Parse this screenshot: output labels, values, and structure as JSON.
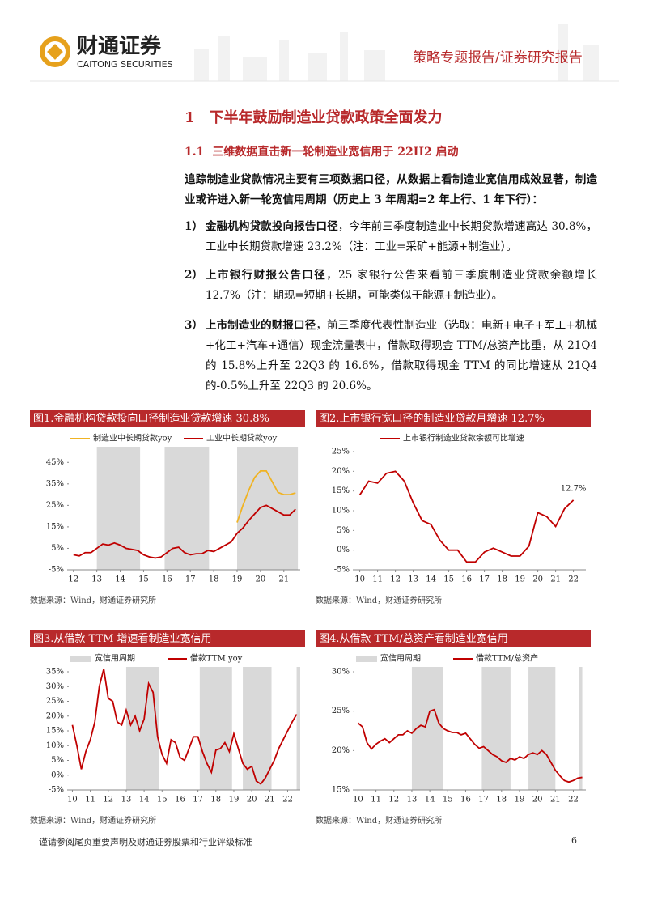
{
  "header": {
    "logo_cn": "财通证券",
    "logo_en": "CAITONG SECURITIES",
    "report_type": "策略专题报告/证券研究报告"
  },
  "section": {
    "number": "1",
    "title": "下半年鼓励制造业贷款政策全面发力"
  },
  "subsection": {
    "number": "1.1",
    "title": "三维数据直击新一轮制造业宽信用于 22H2 启动"
  },
  "intro": "追踪制造业贷款情况主要有三项数据口径，从数据上看制造业宽信用成效显著，制造业或许进入新一轮宽信用周期（历史上 3 年周期=2 年上行、1 年下行）：",
  "items": [
    {
      "marker": "1）",
      "bold": "金融机构贷款投向报告口径",
      "text": "，今年前三季度制造业中长期贷款增速高达 30.8%，工业中长期贷款增速 23.2%（注：工业=采矿+能源+制造业）。"
    },
    {
      "marker": "2）",
      "bold": "上市银行财报公告口径",
      "text": "，25 家银行公告来看前三季度制造业贷款余额增长 12.7%（注：期现=短期+长期，可能类似于能源+制造业）。"
    },
    {
      "marker": "3）",
      "bold": "上市制造业的财报口径",
      "text": "，前三季度代表性制造业（选取：电新+电子+军工+机械+化工+汽车+通信）现金流量表中，借款取得现金 TTM/总资产比重，从 21Q4 的 15.8%上升至 22Q3 的 16.6%，借款取得现金 TTM 的同比增速从 21Q4 的-0.5%上升至 22Q3 的 20.6%。"
    }
  ],
  "chart_data": [
    {
      "type": "line",
      "title": "图1.金融机构贷款投向口径制造业贷款增速 30.8%",
      "source": "数据来源：Wind，财通证券研究所",
      "x": [
        12,
        12.25,
        12.5,
        12.75,
        13,
        13.25,
        13.5,
        13.75,
        14,
        14.25,
        14.5,
        14.75,
        15,
        15.25,
        15.5,
        15.75,
        16,
        16.25,
        16.5,
        16.75,
        17,
        17.25,
        17.5,
        17.75,
        18,
        18.25,
        18.5,
        18.75,
        19,
        19.25,
        19.5,
        19.75,
        20,
        20.25,
        20.5,
        20.75,
        21,
        21.25,
        21.5
      ],
      "series": [
        {
          "name": "制造业中长期贷款yoy",
          "color": "#f0b323",
          "values": [
            null,
            null,
            null,
            null,
            null,
            null,
            null,
            null,
            null,
            null,
            null,
            null,
            null,
            null,
            null,
            null,
            null,
            null,
            null,
            null,
            null,
            null,
            null,
            null,
            null,
            null,
            null,
            null,
            17,
            25,
            32,
            38,
            41,
            41,
            36,
            31,
            30,
            30,
            30.8
          ]
        },
        {
          "name": "工业中长期贷款yoy",
          "color": "#c00000",
          "values": [
            2,
            1.5,
            3,
            3,
            5,
            7,
            6.5,
            7.5,
            6.5,
            5,
            4.5,
            4,
            2,
            1,
            0.5,
            1,
            3,
            5,
            5.5,
            3,
            2,
            2.5,
            2.5,
            4,
            3.5,
            5,
            6.5,
            8,
            12,
            14.5,
            18,
            21,
            24,
            25,
            23.5,
            22,
            20.5,
            20.5,
            23.2
          ]
        }
      ],
      "shaded": [
        [
          13,
          14.85
        ],
        [
          15.9,
          17.8
        ],
        [
          19,
          21.6
        ]
      ],
      "shade_color": "#d9d9d9",
      "xlim": [
        11.8,
        21.7
      ],
      "xticks": [
        12,
        13,
        14,
        15,
        16,
        17,
        18,
        19,
        20,
        21
      ],
      "ylim": [
        -5,
        50
      ],
      "yticks": [
        {
          "value": -5,
          "label": "-5%"
        },
        {
          "value": 5,
          "label": "5%"
        },
        {
          "value": 15,
          "label": "15%"
        },
        {
          "value": 25,
          "label": "25%"
        },
        {
          "value": 35,
          "label": "35%"
        },
        {
          "value": 45,
          "label": "45%"
        }
      ]
    },
    {
      "type": "line",
      "title": "图2.上市银行宽口径的制造业贷款月增速 12.7%",
      "source": "数据来源：Wind，财通证券研究所",
      "x": [
        10,
        10.5,
        11,
        11.5,
        12,
        12.5,
        13,
        13.5,
        14,
        14.5,
        15,
        15.5,
        16,
        16.5,
        17,
        17.5,
        18,
        18.5,
        19,
        19.5,
        20,
        20.5,
        21,
        21.5,
        22
      ],
      "series": [
        {
          "name": "上市银行制造业贷款余额可比增速",
          "color": "#c00000",
          "values": [
            14,
            17.5,
            17,
            19.5,
            20,
            17.5,
            12,
            7.5,
            6.5,
            2.5,
            0,
            0,
            -3,
            -3,
            -0.5,
            0.5,
            -0.5,
            -1.5,
            -1.5,
            1,
            9.5,
            8.5,
            6,
            10.5,
            12.7
          ],
          "value_labels": [
            null,
            null,
            null,
            null,
            null,
            null,
            null,
            null,
            null,
            null,
            null,
            null,
            null,
            null,
            null,
            null,
            null,
            null,
            null,
            null,
            null,
            null,
            null,
            null,
            "12.7%"
          ]
        }
      ],
      "xlim": [
        9.7,
        22.7
      ],
      "xticks": [
        10,
        11,
        12,
        13,
        14,
        15,
        16,
        17,
        18,
        19,
        20,
        21,
        22
      ],
      "ylim": [
        -5,
        25
      ],
      "yticks": [
        {
          "value": -5,
          "label": "-5%"
        },
        {
          "value": 0,
          "label": "0%"
        },
        {
          "value": 5,
          "label": "5%"
        },
        {
          "value": 10,
          "label": "10%"
        },
        {
          "value": 15,
          "label": "15%"
        },
        {
          "value": 20,
          "label": "20%"
        },
        {
          "value": 25,
          "label": "25%"
        }
      ]
    },
    {
      "type": "line",
      "title": "图3.从借款 TTM 增速看制造业宽信用",
      "source": "数据来源：Wind，财通证券研究所",
      "x": [
        10,
        10.25,
        10.5,
        10.75,
        11,
        11.25,
        11.5,
        11.75,
        12,
        12.25,
        12.5,
        12.75,
        13,
        13.25,
        13.5,
        13.75,
        14,
        14.25,
        14.5,
        14.75,
        15,
        15.25,
        15.5,
        15.75,
        16,
        16.25,
        16.5,
        16.75,
        17,
        17.25,
        17.5,
        17.75,
        18,
        18.25,
        18.5,
        18.75,
        19,
        19.25,
        19.5,
        19.75,
        20,
        20.25,
        20.5,
        20.75,
        21,
        21.25,
        21.5,
        21.75,
        22,
        22.25,
        22.5
      ],
      "series": [
        {
          "name": "借款TTM yoy",
          "color": "#c00000",
          "values": [
            17,
            10,
            2,
            8,
            12,
            18,
            30,
            36,
            26,
            25,
            18,
            17,
            22,
            17,
            20,
            15,
            19,
            31,
            28,
            13,
            7,
            4,
            12,
            11,
            6,
            5,
            9,
            13,
            13,
            8,
            4,
            1,
            8.5,
            9,
            11,
            8,
            14,
            9,
            4,
            2,
            3,
            -2,
            -3,
            -1,
            2,
            5,
            9,
            12,
            15,
            18,
            20.6
          ]
        }
      ],
      "shaded": [
        [
          13,
          14.85
        ],
        [
          17.1,
          18.9
        ],
        [
          19.5,
          21.1
        ],
        [
          22.5,
          22.7
        ]
      ],
      "shade_name": "宽信用周期",
      "shade_color": "#d9d9d9",
      "xlim": [
        9.8,
        22.7
      ],
      "xticks": [
        10,
        11,
        12,
        13,
        14,
        15,
        16,
        17,
        18,
        19,
        20,
        21,
        22
      ],
      "ylim": [
        -5,
        35
      ],
      "yticks": [
        {
          "value": -5,
          "label": "-5%"
        },
        {
          "value": 0,
          "label": "0%"
        },
        {
          "value": 5,
          "label": "5%"
        },
        {
          "value": 10,
          "label": "10%"
        },
        {
          "value": 15,
          "label": "15%"
        },
        {
          "value": 20,
          "label": "20%"
        },
        {
          "value": 25,
          "label": "25%"
        },
        {
          "value": 30,
          "label": "30%"
        },
        {
          "value": 35,
          "label": "35%"
        }
      ]
    },
    {
      "type": "line",
      "title": "图4.从借款 TTM/总资产看制造业宽信用",
      "source": "数据来源：Wind，财通证券研究所",
      "x": [
        10,
        10.25,
        10.5,
        10.75,
        11,
        11.25,
        11.5,
        11.75,
        12,
        12.25,
        12.5,
        12.75,
        13,
        13.25,
        13.5,
        13.75,
        14,
        14.25,
        14.5,
        14.75,
        15,
        15.25,
        15.5,
        15.75,
        16,
        16.25,
        16.5,
        16.75,
        17,
        17.25,
        17.5,
        17.75,
        18,
        18.25,
        18.5,
        18.75,
        19,
        19.25,
        19.5,
        19.75,
        20,
        20.25,
        20.5,
        20.75,
        21,
        21.25,
        21.5,
        21.75,
        22,
        22.25,
        22.5
      ],
      "series": [
        {
          "name": "借款TTM/总资产",
          "color": "#c00000",
          "values": [
            23.5,
            23,
            21,
            20.2,
            20.8,
            21.2,
            21.5,
            21,
            21.5,
            22,
            22,
            22.5,
            22.2,
            22.8,
            23.2,
            23,
            25,
            25.2,
            23.5,
            22.8,
            22.5,
            22.3,
            22.3,
            22,
            22.2,
            21.5,
            20.8,
            20.3,
            20.5,
            20,
            19.5,
            19.2,
            18.7,
            18.5,
            19,
            18.8,
            19.2,
            19,
            19.5,
            19.7,
            19.5,
            20,
            19.5,
            18.5,
            17.5,
            16.8,
            16.2,
            16,
            16.2,
            16.5,
            16.6
          ]
        }
      ],
      "shaded": [
        [
          13,
          14.75
        ],
        [
          16.9,
          18.5
        ],
        [
          19.5,
          21
        ],
        [
          22.3,
          22.5
        ]
      ],
      "shade_name": "宽信用周期",
      "shade_color": "#d9d9d9",
      "xlim": [
        9.8,
        22.7
      ],
      "xticks": [
        10,
        11,
        12,
        13,
        14,
        15,
        16,
        17,
        18,
        19,
        20,
        21,
        22
      ],
      "ylim": [
        15,
        30
      ],
      "yticks": [
        {
          "value": 15,
          "label": "15%"
        },
        {
          "value": 20,
          "label": "20%"
        },
        {
          "value": 25,
          "label": "25%"
        },
        {
          "value": 30,
          "label": "30%"
        }
      ]
    }
  ],
  "footer": {
    "disclaimer": "谨请参阅尾页重要声明及财通证券股票和行业评级标准",
    "page": "6"
  }
}
